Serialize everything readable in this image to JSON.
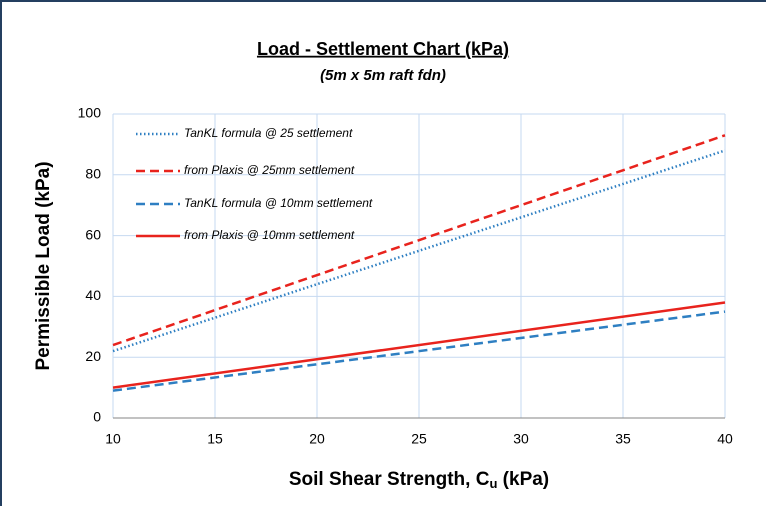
{
  "chart_data": {
    "type": "line",
    "title": "Load - Settlement Chart (kPa)",
    "subtitle": "(5m x 5m raft fdn)",
    "x_label": [
      "Soil Shear Strength, C",
      "u",
      " (kPa)"
    ],
    "y_label": "Permissible Load (kPa)",
    "x": [
      10,
      40
    ],
    "series": [
      {
        "name": "TanKL formula @ 25 settlement",
        "color": "#2e7fc2",
        "dash": "dotted",
        "values": [
          22,
          88
        ]
      },
      {
        "name": "from Plaxis @ 25mm settlement",
        "color": "#e8231d",
        "dash": "dashed",
        "values": [
          24,
          93
        ]
      },
      {
        "name": "TanKL formula @ 10mm settlement",
        "color": "#2e7fc2",
        "dash": "dashed",
        "values": [
          9,
          35
        ]
      },
      {
        "name": "from Plaxis @ 10mm settlement",
        "color": "#e8231d",
        "dash": "solid",
        "values": [
          10,
          38
        ]
      }
    ],
    "xlim": [
      10,
      40
    ],
    "xticks": [
      10,
      15,
      20,
      25,
      30,
      35,
      40
    ],
    "ylim": [
      0,
      100
    ],
    "yticks": [
      0,
      20,
      40,
      60,
      80,
      100
    ],
    "grid": true,
    "legend": "upper left"
  }
}
